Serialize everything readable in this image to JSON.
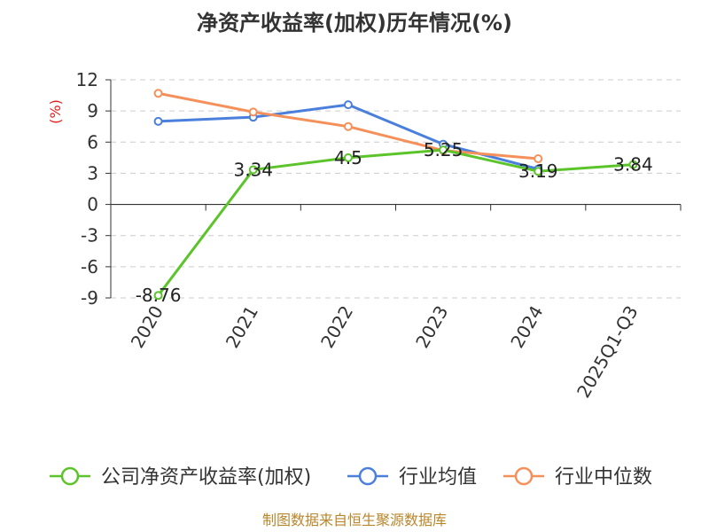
{
  "chart_data": {
    "type": "line",
    "title": "净资产收益率(加权)历年情况(%)",
    "ylabel": "(%)",
    "categories": [
      "2020",
      "2021",
      "2022",
      "2023",
      "2024",
      "2025Q1-Q3"
    ],
    "ylim": [
      -9,
      12
    ],
    "yticks": [
      12,
      9,
      6,
      3,
      0,
      -3,
      -6,
      -9
    ],
    "grid": true,
    "legend_position": "bottom",
    "series": [
      {
        "name": "公司净资产收益率(加权)",
        "color": "#5cc42b",
        "values": [
          -8.76,
          3.34,
          4.5,
          5.25,
          3.19,
          3.84
        ],
        "labels": [
          "-8.76",
          "3.34",
          "4.5",
          "5.25",
          "3.19",
          "3.84"
        ]
      },
      {
        "name": "行业均值",
        "color": "#4a7fdc",
        "values": [
          8.0,
          8.4,
          9.6,
          5.8,
          3.4,
          null
        ]
      },
      {
        "name": "行业中位数",
        "color": "#f5905a",
        "values": [
          10.7,
          8.9,
          7.5,
          5.2,
          4.4,
          null
        ]
      }
    ]
  },
  "footer": {
    "source": "制图数据来自恒生聚源数据库"
  }
}
